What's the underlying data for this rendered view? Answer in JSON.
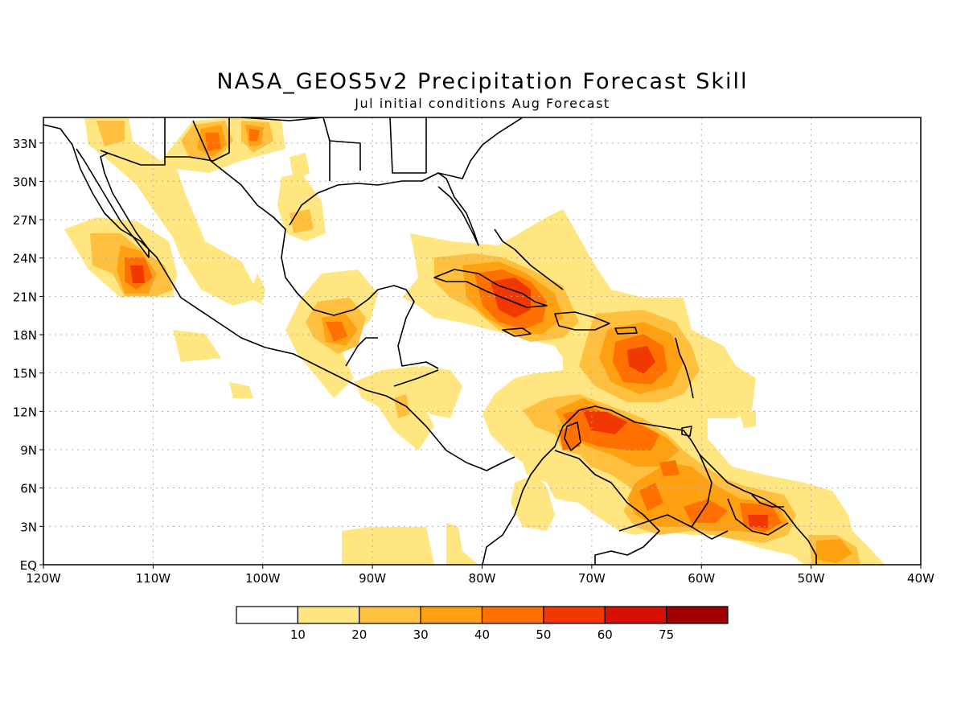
{
  "title": "NASA_GEOS5v2 Precipitation Forecast Skill",
  "subtitle": "Jul initial conditions  Aug Forecast",
  "map": {
    "lon_range": [
      -120,
      -40
    ],
    "lat_range": [
      0,
      35
    ],
    "lat_labels": [
      "EQ",
      "3N",
      "6N",
      "9N",
      "12N",
      "15N",
      "18N",
      "21N",
      "24N",
      "27N",
      "30N",
      "33N"
    ],
    "lon_labels": [
      "120W",
      "110W",
      "100W",
      "90W",
      "80W",
      "70W",
      "60W",
      "50W",
      "40W"
    ],
    "grid": "dotted"
  },
  "colorbar": {
    "labels": [
      "10",
      "20",
      "30",
      "40",
      "50",
      "60",
      "75"
    ],
    "colors": [
      "#ffffff",
      "#ffe680",
      "#ffc040",
      "#ffa010",
      "#ff7000",
      "#f03800",
      "#d81000",
      "#a00000"
    ]
  }
}
